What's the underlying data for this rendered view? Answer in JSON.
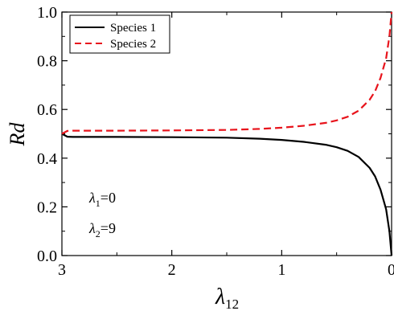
{
  "chart_data": {
    "type": "line",
    "xlabel": "λ",
    "xlabel_sub": "12",
    "ylabel": "Rd",
    "xlim": [
      3,
      0
    ],
    "ylim": [
      0.0,
      1.0
    ],
    "x_reversed": true,
    "xticks": [
      3,
      2,
      1,
      0
    ],
    "xtick_labels": [
      "3",
      "2",
      "1",
      "0"
    ],
    "yticks": [
      0.0,
      0.2,
      0.4,
      0.6,
      0.8,
      1.0
    ],
    "ytick_labels": [
      "0.0",
      "0.2",
      "0.4",
      "0.6",
      "0.8",
      "1.0"
    ],
    "grid": false,
    "legend_position": "top-left",
    "series": [
      {
        "name": "Species 1",
        "color": "#000000",
        "style": "solid",
        "x": [
          3.0,
          2.95,
          2.9,
          2.5,
          2.0,
          1.5,
          1.2,
          1.0,
          0.8,
          0.6,
          0.5,
          0.4,
          0.3,
          0.2,
          0.15,
          0.1,
          0.05,
          0.02,
          0.0
        ],
        "y": [
          0.5,
          0.488,
          0.487,
          0.487,
          0.486,
          0.484,
          0.48,
          0.475,
          0.467,
          0.455,
          0.445,
          0.43,
          0.405,
          0.36,
          0.325,
          0.27,
          0.19,
          0.1,
          0.0
        ]
      },
      {
        "name": "Species 2",
        "color": "#e8141c",
        "style": "dashed",
        "x": [
          3.0,
          2.95,
          2.9,
          2.5,
          2.0,
          1.5,
          1.2,
          1.0,
          0.8,
          0.6,
          0.5,
          0.4,
          0.3,
          0.2,
          0.15,
          0.1,
          0.05,
          0.02,
          0.0
        ],
        "y": [
          0.5,
          0.512,
          0.513,
          0.513,
          0.514,
          0.516,
          0.52,
          0.525,
          0.533,
          0.545,
          0.555,
          0.57,
          0.595,
          0.64,
          0.675,
          0.73,
          0.81,
          0.9,
          1.0
        ]
      }
    ],
    "annotations": [
      {
        "base": "λ",
        "sub": "1",
        "rest": "=0"
      },
      {
        "base": "λ",
        "sub": "2",
        "rest": "=9"
      }
    ]
  }
}
